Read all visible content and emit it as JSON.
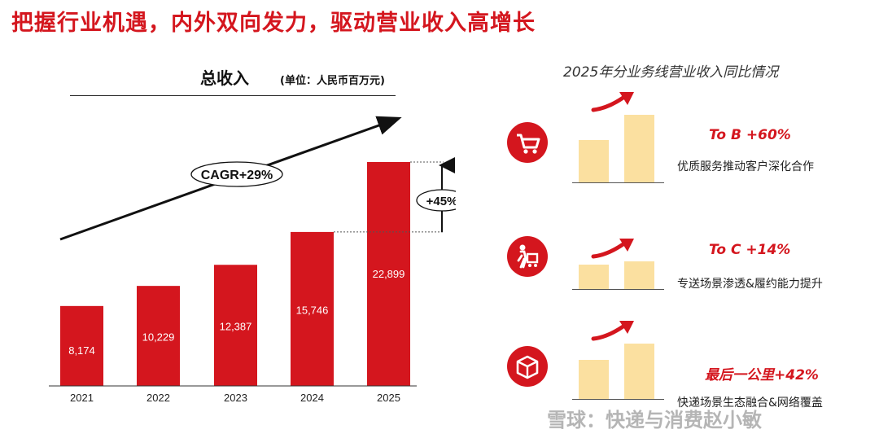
{
  "page_title": "把握行业机遇，内外双向发力，驱动营业收入高增长",
  "chart_data": {
    "type": "bar",
    "title": "总收入",
    "unit": "(单位：人民币百万元)",
    "categories": [
      "2021",
      "2022",
      "2023",
      "2024",
      "2025"
    ],
    "values": [
      8174,
      10229,
      12387,
      15746,
      22899
    ],
    "value_labels": [
      "8,174",
      "10,229",
      "12,387",
      "15,746",
      "22,899"
    ],
    "cagr_label": "CAGR+29%",
    "growth_label": "+45%",
    "bar_color": "#d4161e"
  },
  "right_panel": {
    "title": "2025年分业务线营业收入同比情况",
    "segments": [
      {
        "icon": "shopping-cart-icon",
        "label": "To B +60%",
        "desc": "优质服务推动客户深化合作",
        "ratio": 1.6
      },
      {
        "icon": "delivery-person-icon",
        "label": "To C +14%",
        "desc": "专送场景渗透&履约能力提升",
        "ratio": 1.14
      },
      {
        "icon": "package-box-icon",
        "label": "最后一公里+42%",
        "desc": "快递场景生态融合&网络覆盖",
        "ratio": 1.42
      }
    ]
  },
  "watermark": "雪球：快递与消费赵小敏",
  "colors": {
    "accent": "#d4161e",
    "mini_bar": "#fbe0a0"
  }
}
